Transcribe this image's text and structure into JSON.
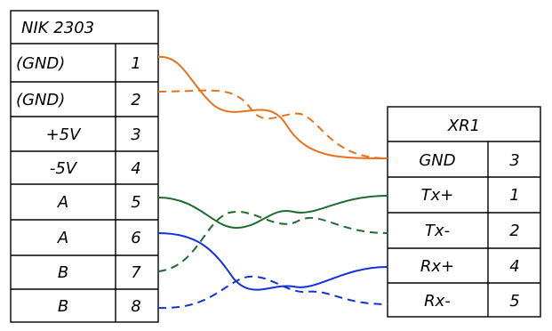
{
  "left_table": {
    "title": "NIK 2303",
    "rows": [
      {
        "name": "(GND)",
        "pin": "1"
      },
      {
        "name": "(GND)",
        "pin": "2"
      },
      {
        "name": "+5V",
        "pin": "3"
      },
      {
        "name": "-5V",
        "pin": "4"
      },
      {
        "name": "A",
        "pin": "5"
      },
      {
        "name": "A",
        "pin": "6"
      },
      {
        "name": "B",
        "pin": "7"
      },
      {
        "name": "B",
        "pin": "8"
      }
    ]
  },
  "right_table": {
    "title": "XR1",
    "rows": [
      {
        "name": "GND",
        "pin": "3"
      },
      {
        "name": "Tx+",
        "pin": "1"
      },
      {
        "name": "Tx-",
        "pin": "2"
      },
      {
        "name": "Rx+",
        "pin": "4"
      },
      {
        "name": "Rx-",
        "pin": "5"
      }
    ]
  },
  "wire_colors": {
    "gnd": "#e8711c",
    "tx": "#1e6b2f",
    "rx": "#1432d8"
  }
}
